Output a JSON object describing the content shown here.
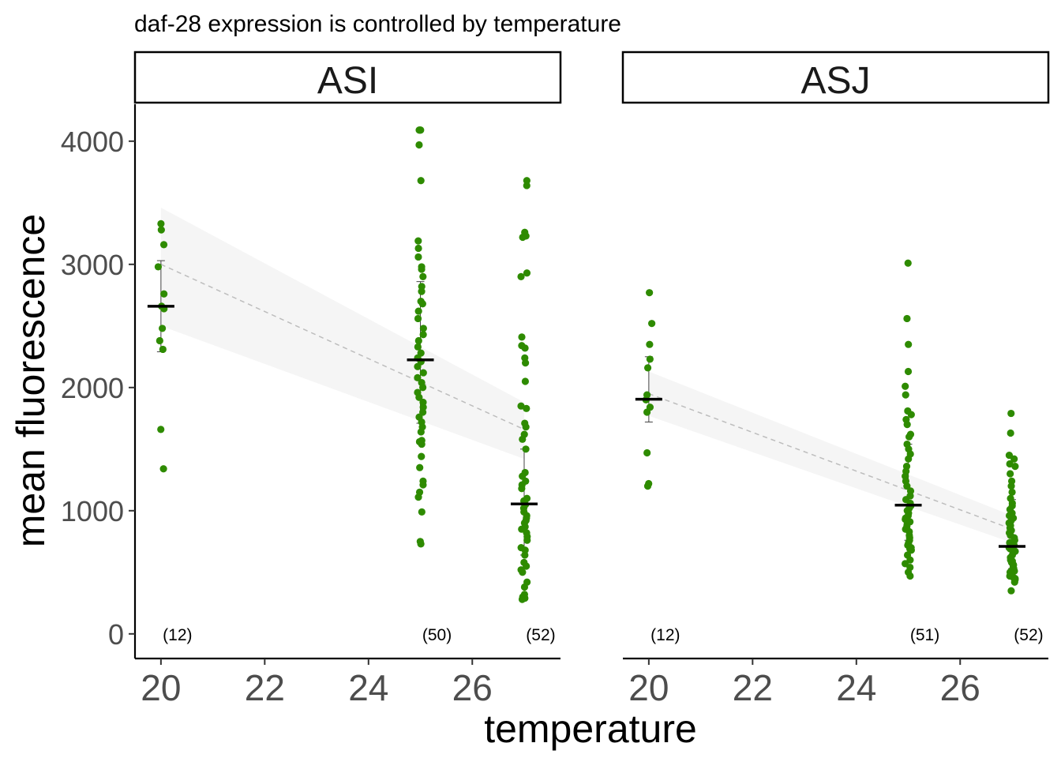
{
  "chart_data": {
    "type": "scatter",
    "title": "daf-28 expression is controlled by temperature",
    "xlabel": "temperature",
    "ylabel": "mean fluorescence",
    "xlim": [
      19.5,
      27.7
    ],
    "ylim": [
      -200,
      4300
    ],
    "x_ticks": [
      20,
      22,
      24,
      26
    ],
    "y_ticks": [
      0,
      1000,
      2000,
      3000,
      4000
    ],
    "point_color": "#2e8b00",
    "ribbon_color": "#f5f5f5",
    "fit_line_color": "#bdbdbd",
    "mean_color": "#000000",
    "grid": false,
    "panels": [
      {
        "name": "ASI",
        "groups": [
          {
            "x": 20,
            "count_label": "(12)",
            "mean": 2660,
            "err_low": 2290,
            "err_high": 3030,
            "points": [
              3330,
              3280,
              3160,
              2980,
              2760,
              2660,
              2640,
              2480,
              2380,
              2310,
              1660,
              1340
            ]
          },
          {
            "x": 25,
            "count_label": "(50)",
            "mean": 2225,
            "err_low": 1710,
            "err_high": 2860,
            "points": [
              4090,
              4090,
              4090,
              3970,
              3680,
              3190,
              3130,
              3060,
              2980,
              2960,
              2900,
              2820,
              2780,
              2700,
              2680,
              2620,
              2560,
              2480,
              2430,
              2380,
              2330,
              2280,
              2240,
              2210,
              2170,
              2120,
              2080,
              2040,
              2000,
              1960,
              1920,
              1880,
              1840,
              1800,
              1760,
              1720,
              1680,
              1640,
              1570,
              1560,
              1540,
              1440,
              1350,
              1240,
              1210,
              1150,
              1110,
              990,
              750,
              730
            ]
          },
          {
            "x": 27,
            "count_label": "(52)",
            "mean": 1055,
            "err_low": 640,
            "err_high": 1500,
            "points": [
              3680,
              3640,
              3260,
              3230,
              3220,
              2930,
              2900,
              2410,
              2340,
              2320,
              2240,
              2200,
              2050,
              1850,
              1830,
              1710,
              1680,
              1620,
              1580,
              1500,
              1310,
              1280,
              1240,
              1210,
              1180,
              1100,
              1080,
              1050,
              1020,
              990,
              960,
              940,
              920,
              900,
              870,
              850,
              820,
              790,
              760,
              700,
              680,
              640,
              580,
              550,
              520,
              500,
              420,
              380,
              320,
              300,
              290,
              280
            ]
          }
        ],
        "fit": {
          "x": [
            20,
            27
          ],
          "y": [
            3000,
            1660
          ],
          "ribbon_low": [
            2500,
            1420
          ],
          "ribbon_high": [
            3460,
            1880
          ]
        }
      },
      {
        "name": "ASJ",
        "groups": [
          {
            "x": 20,
            "count_label": "(12)",
            "mean": 1905,
            "err_low": 1720,
            "err_high": 2250,
            "points": [
              2770,
              2520,
              2350,
              2230,
              2160,
              1940,
              1900,
              1840,
              1800,
              1470,
              1220,
              1200
            ]
          },
          {
            "x": 25,
            "count_label": "(51)",
            "mean": 1045,
            "err_low": 760,
            "err_high": 1540,
            "points": [
              3010,
              2560,
              2350,
              2130,
              2010,
              1940,
              1810,
              1780,
              1740,
              1700,
              1620,
              1600,
              1540,
              1500,
              1460,
              1420,
              1360,
              1320,
              1280,
              1240,
              1200,
              1160,
              1120,
              1090,
              1060,
              1040,
              1020,
              1000,
              980,
              960,
              940,
              910,
              890,
              870,
              850,
              830,
              800,
              780,
              760,
              740,
              720,
              700,
              690,
              680,
              640,
              600,
              570,
              540,
              500,
              470,
              930
            ]
          },
          {
            "x": 27,
            "count_label": "(52)",
            "mean": 710,
            "err_low": 530,
            "err_high": 1090,
            "points": [
              1790,
              1630,
              1450,
              1420,
              1380,
              1360,
              1300,
              1240,
              1200,
              1150,
              1100,
              1060,
              1040,
              1010,
              980,
              960,
              940,
              920,
              900,
              880,
              860,
              840,
              820,
              800,
              780,
              760,
              740,
              720,
              700,
              690,
              680,
              670,
              660,
              640,
              620,
              600,
              590,
              580,
              560,
              550,
              530,
              520,
              510,
              500,
              490,
              480,
              470,
              460,
              450,
              440,
              420,
              350
            ]
          }
        ],
        "fit": {
          "x": [
            20,
            27
          ],
          "y": [
            1950,
            850
          ],
          "ribbon_low": [
            1770,
            740
          ],
          "ribbon_high": [
            2130,
            960
          ]
        }
      }
    ]
  }
}
